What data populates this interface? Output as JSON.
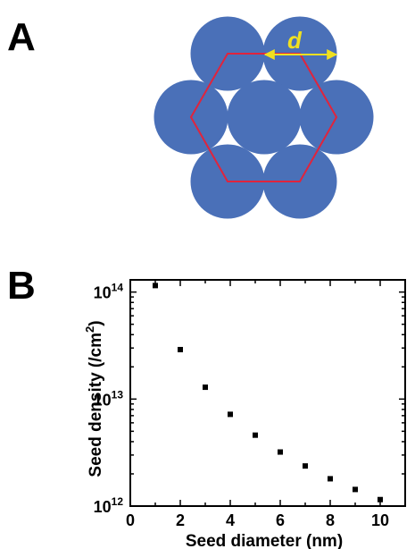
{
  "panel_a": {
    "label": "A",
    "annotation": "d",
    "colors": {
      "circle": "#4a70b8",
      "hexagon": "#e0243c",
      "arrow": "#f0e020"
    }
  },
  "panel_b": {
    "label": "B"
  },
  "chart_data": {
    "type": "scatter",
    "title": "",
    "xlabel": "Seed diameter (nm)",
    "ylabel": "Seed density (/cm²)",
    "ylabel_parts": {
      "main": "Seed density (/cm",
      "sup": "2",
      "end": ")"
    },
    "xlim": [
      0,
      11
    ],
    "ylim": [
      1000000000000.0,
      130000000000000.0
    ],
    "yscale": "log",
    "xticks": [
      "0",
      "2",
      "4",
      "6",
      "8",
      "10"
    ],
    "yticks": [
      {
        "base": "10",
        "exp": "12"
      },
      {
        "base": "10",
        "exp": "13"
      },
      {
        "base": "10",
        "exp": "14"
      }
    ],
    "grid": false,
    "marker": "square",
    "x": [
      1,
      2,
      3,
      4,
      5,
      6,
      7,
      8,
      9,
      10
    ],
    "y": [
      115000000000000.0,
      29000000000000.0,
      12900000000000.0,
      7200000000000.0,
      4600000000000.0,
      3200000000000.0,
      2370000000000.0,
      1800000000000.0,
      1430000000000.0,
      1150000000000.0
    ]
  }
}
